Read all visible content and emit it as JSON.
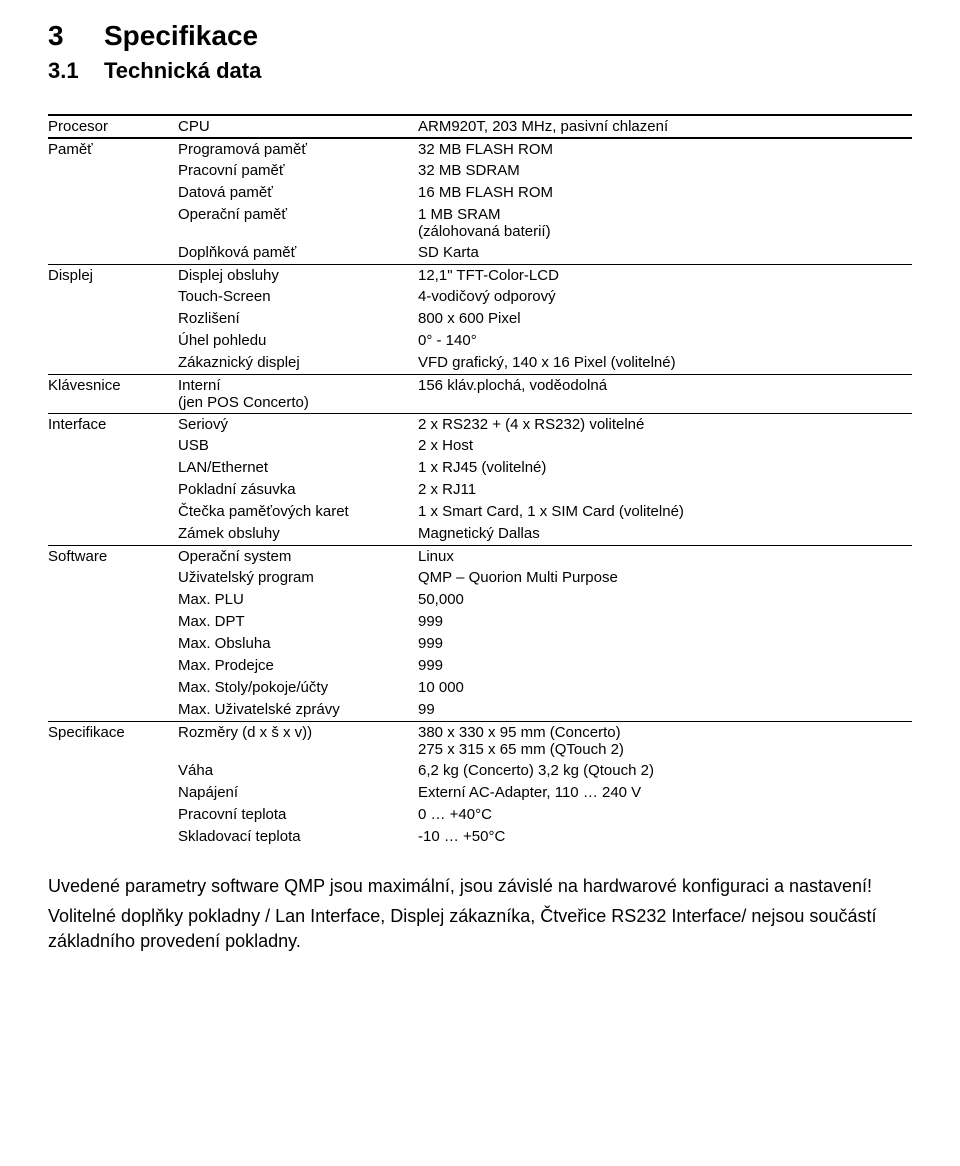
{
  "heading": {
    "num": "3",
    "text": "Specifikace"
  },
  "subheading": {
    "num": "3.1",
    "text": "Technická data"
  },
  "rows": [
    {
      "col1": "Procesor",
      "col2": "CPU",
      "col3": "ARM920T, 203 MHz, pasivní chlazení",
      "rule": "thick"
    },
    {
      "col1": "Paměť",
      "col2": "Programová paměť",
      "col3": "32 MB FLASH ROM",
      "rule": "thick"
    },
    {
      "col1": "",
      "col2": "Pracovní paměť",
      "col3": "32 MB SDRAM",
      "rule": ""
    },
    {
      "col1": "",
      "col2": "Datová paměť",
      "col3": "16 MB FLASH ROM",
      "rule": ""
    },
    {
      "col1": "",
      "col2": "Operační paměť",
      "col3": "1 MB SRAM\n(zálohovaná baterií)",
      "rule": ""
    },
    {
      "col1": "",
      "col2": "Doplňková paměť",
      "col3": "SD Karta",
      "rule": ""
    },
    {
      "col1": "Displej",
      "col2": "Displej obsluhy",
      "col3": "12,1\" TFT-Color-LCD",
      "rule": "thin"
    },
    {
      "col1": "",
      "col2": "Touch-Screen",
      "col3": "4-vodičový odporový",
      "rule": ""
    },
    {
      "col1": "",
      "col2": "Rozlišení",
      "col3": "800 x 600 Pixel",
      "rule": ""
    },
    {
      "col1": "",
      "col2": "Úhel pohledu",
      "col3": "0° - 140°",
      "rule": ""
    },
    {
      "col1": "",
      "col2": "Zákaznický displej",
      "col3": "VFD grafický, 140 x 16 Pixel (volitelné)",
      "rule": ""
    },
    {
      "col1": "Klávesnice",
      "col2": "Interní\n(jen POS Concerto)",
      "col3": "156 kláv.plochá, voděodolná",
      "rule": "thin"
    },
    {
      "col1": "Interface",
      "col2": "Seriový",
      "col3": "2 x RS232 + (4 x RS232) volitelné",
      "rule": "thin"
    },
    {
      "col1": "",
      "col2": "USB",
      "col3": "2 x Host",
      "rule": ""
    },
    {
      "col1": "",
      "col2": "LAN/Ethernet",
      "col3": "1 x RJ45 (volitelné)",
      "rule": ""
    },
    {
      "col1": "",
      "col2": "Pokladní zásuvka",
      "col3": "2 x RJ11",
      "rule": ""
    },
    {
      "col1": "",
      "col2": "Čtečka paměťových karet",
      "col3": "1 x Smart Card, 1 x SIM Card (volitelné)",
      "rule": ""
    },
    {
      "col1": "",
      "col2": "Zámek obsluhy",
      "col3": "Magnetický Dallas",
      "rule": ""
    },
    {
      "col1": "Software",
      "col2": "Operační system",
      "col3": "Linux",
      "rule": "thin"
    },
    {
      "col1": "",
      "col2": "Uživatelský program",
      "col3": "QMP – Quorion Multi Purpose",
      "rule": ""
    },
    {
      "col1": "",
      "col2": "Max. PLU",
      "col3": "50,000",
      "rule": ""
    },
    {
      "col1": "",
      "col2": "Max. DPT",
      "col3": "999",
      "rule": ""
    },
    {
      "col1": "",
      "col2": "Max. Obsluha",
      "col3": "999",
      "rule": ""
    },
    {
      "col1": "",
      "col2": "Max. Prodejce",
      "col3": "999",
      "rule": ""
    },
    {
      "col1": "",
      "col2": "Max. Stoly/pokoje/účty",
      "col3": "10 000",
      "rule": ""
    },
    {
      "col1": "",
      "col2": "Max. Uživatelské zprávy",
      "col3": "99",
      "rule": ""
    },
    {
      "col1": "Specifikace",
      "col2": "Rozměry (d x š x v))",
      "col3": "380 x 330 x 95 mm (Concerto)\n275 x 315 x 65 mm (QTouch 2)",
      "rule": "thin"
    },
    {
      "col1": "",
      "col2": "Váha",
      "col3": "6,2 kg (Concerto)  3,2 kg (Qtouch 2)",
      "rule": ""
    },
    {
      "col1": "",
      "col2": "Napájení",
      "col3": "Externí AC-Adapter, 110 … 240 V",
      "rule": ""
    },
    {
      "col1": "",
      "col2": "Pracovní teplota",
      "col3": "  0 … +40°C",
      "rule": ""
    },
    {
      "col1": "",
      "col2": "Skladovací teplota",
      "col3": "-10 … +50°C",
      "rule": ""
    }
  ],
  "note1": "Uvedené parametry software QMP jsou maximální, jsou závislé na hardwarové konfiguraci a nastavení!",
  "note2": "Volitelné doplňky pokladny / Lan Interface, Displej zákazníka, Čtveřice RS232 Interface/ nejsou součástí základního provedení pokladny."
}
